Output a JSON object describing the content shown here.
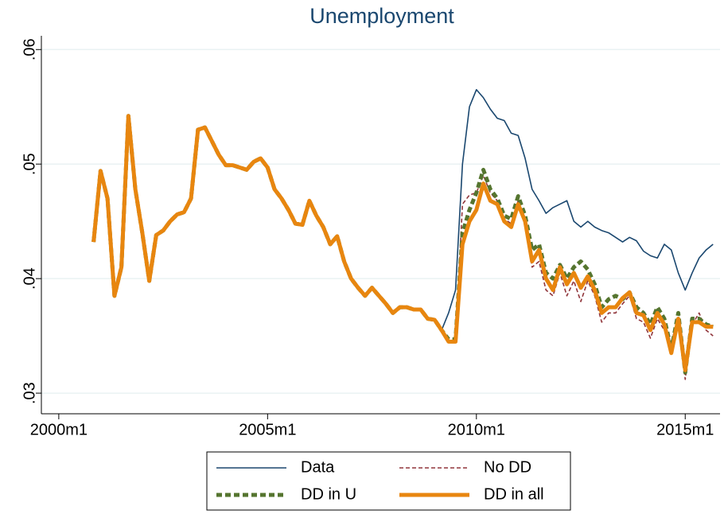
{
  "chart_data": {
    "type": "line",
    "title": "Unemployment",
    "x": [
      "2000m11",
      "2001m1",
      "2001m3",
      "2001m5",
      "2001m7",
      "2001m9",
      "2001m11",
      "2002m1",
      "2002m3",
      "2002m5",
      "2002m7",
      "2002m9",
      "2002m11",
      "2003m1",
      "2003m3",
      "2003m5",
      "2003m7",
      "2003m9",
      "2003m11",
      "2004m1",
      "2004m3",
      "2004m5",
      "2004m7",
      "2004m9",
      "2004m11",
      "2005m1",
      "2005m3",
      "2005m5",
      "2005m7",
      "2005m9",
      "2005m11",
      "2006m1",
      "2006m3",
      "2006m5",
      "2006m7",
      "2006m9",
      "2006m11",
      "2007m1",
      "2007m3",
      "2007m5",
      "2007m7",
      "2007m9",
      "2007m11",
      "2008m1",
      "2008m3",
      "2008m5",
      "2008m7",
      "2008m9",
      "2008m11",
      "2009m1",
      "2009m3",
      "2009m5",
      "2009m7",
      "2009m9",
      "2009m11",
      "2010m1",
      "2010m3",
      "2010m5",
      "2010m7",
      "2010m9",
      "2010m11",
      "2011m1",
      "2011m3",
      "2011m5",
      "2011m7",
      "2011m9",
      "2011m11",
      "2012m1",
      "2012m3",
      "2012m5",
      "2012m7",
      "2012m9",
      "2012m11",
      "2013m1",
      "2013m3",
      "2013m5",
      "2013m7",
      "2013m9",
      "2013m11",
      "2014m1",
      "2014m3",
      "2014m5",
      "2014m7",
      "2014m9",
      "2014m11",
      "2015m1",
      "2015m3",
      "2015m5",
      "2015m7",
      "2015m9"
    ],
    "series": [
      {
        "name": "Data",
        "color": "#1a476f",
        "line_style": "solid",
        "line_width": 1.6,
        "values": [
          0.0432,
          0.0494,
          0.047,
          0.0385,
          0.041,
          0.0542,
          0.0478,
          0.044,
          0.0398,
          0.0438,
          0.0442,
          0.045,
          0.0456,
          0.0458,
          0.047,
          0.053,
          0.0532,
          0.052,
          0.0508,
          0.0499,
          0.0499,
          0.0497,
          0.0495,
          0.0502,
          0.0505,
          0.0497,
          0.0478,
          0.047,
          0.046,
          0.0448,
          0.0447,
          0.0468,
          0.0455,
          0.0445,
          0.043,
          0.0437,
          0.0415,
          0.04,
          0.0392,
          0.0385,
          0.0392,
          0.0385,
          0.0378,
          0.037,
          0.0375,
          0.0375,
          0.0373,
          0.0373,
          0.0365,
          0.0364,
          0.0355,
          0.037,
          0.039,
          0.05,
          0.055,
          0.0565,
          0.0558,
          0.0548,
          0.054,
          0.0538,
          0.0527,
          0.0525,
          0.0505,
          0.0478,
          0.0468,
          0.0457,
          0.0462,
          0.0465,
          0.0468,
          0.045,
          0.0445,
          0.045,
          0.0445,
          0.0442,
          0.044,
          0.0436,
          0.0432,
          0.0436,
          0.0433,
          0.0424,
          0.042,
          0.0418,
          0.043,
          0.0425,
          0.0405,
          0.039,
          0.0405,
          0.0418,
          0.0425,
          0.043
        ]
      },
      {
        "name": "No DD",
        "color": "#90353b",
        "line_style": "dashed",
        "line_width": 1.6,
        "values": [
          0.0432,
          0.0494,
          0.047,
          0.0385,
          0.041,
          0.0542,
          0.0478,
          0.044,
          0.0398,
          0.0438,
          0.0442,
          0.045,
          0.0456,
          0.0458,
          0.047,
          0.053,
          0.0532,
          0.052,
          0.0508,
          0.0499,
          0.0499,
          0.0497,
          0.0495,
          0.0502,
          0.0505,
          0.0497,
          0.0478,
          0.047,
          0.046,
          0.0448,
          0.0447,
          0.0468,
          0.0455,
          0.0445,
          0.043,
          0.0437,
          0.0415,
          0.04,
          0.0392,
          0.0385,
          0.0392,
          0.0385,
          0.0378,
          0.037,
          0.0375,
          0.0375,
          0.0373,
          0.0373,
          0.0365,
          0.0364,
          0.0355,
          0.0345,
          0.0345,
          0.0465,
          0.0473,
          0.0475,
          0.049,
          0.0475,
          0.0468,
          0.0452,
          0.0448,
          0.0468,
          0.045,
          0.041,
          0.0415,
          0.039,
          0.0385,
          0.0405,
          0.0385,
          0.0398,
          0.038,
          0.0398,
          0.0385,
          0.0362,
          0.037,
          0.037,
          0.0378,
          0.0385,
          0.0365,
          0.0362,
          0.0348,
          0.0365,
          0.0355,
          0.0345,
          0.0365,
          0.0312,
          0.036,
          0.037,
          0.0355,
          0.035
        ]
      },
      {
        "name": "DD in U",
        "color": "#55752f",
        "line_style": "dashed",
        "line_width": 5,
        "values": [
          0.0432,
          0.0494,
          0.047,
          0.0385,
          0.041,
          0.0542,
          0.0478,
          0.044,
          0.0398,
          0.0438,
          0.0442,
          0.045,
          0.0456,
          0.0458,
          0.047,
          0.053,
          0.0532,
          0.052,
          0.0508,
          0.0499,
          0.0499,
          0.0497,
          0.0495,
          0.0502,
          0.0505,
          0.0497,
          0.0478,
          0.047,
          0.046,
          0.0448,
          0.0447,
          0.0468,
          0.0455,
          0.0445,
          0.043,
          0.0437,
          0.0415,
          0.04,
          0.0392,
          0.0385,
          0.0392,
          0.0385,
          0.0378,
          0.037,
          0.0375,
          0.0375,
          0.0373,
          0.0373,
          0.0365,
          0.0364,
          0.0355,
          0.0347,
          0.0347,
          0.044,
          0.046,
          0.0475,
          0.0495,
          0.0478,
          0.047,
          0.0455,
          0.0452,
          0.0472,
          0.0455,
          0.0425,
          0.043,
          0.0405,
          0.04,
          0.0412,
          0.04,
          0.041,
          0.0415,
          0.0408,
          0.0395,
          0.0375,
          0.0382,
          0.0385,
          0.0382,
          0.0388,
          0.0375,
          0.037,
          0.036,
          0.0375,
          0.0365,
          0.0338,
          0.037,
          0.0318,
          0.0365,
          0.0365,
          0.036,
          0.0358
        ]
      },
      {
        "name": "DD in all",
        "color": "#e8860f",
        "line_style": "solid",
        "line_width": 5,
        "values": [
          0.0432,
          0.0494,
          0.047,
          0.0385,
          0.041,
          0.0542,
          0.0478,
          0.044,
          0.0398,
          0.0438,
          0.0442,
          0.045,
          0.0456,
          0.0458,
          0.047,
          0.053,
          0.0532,
          0.052,
          0.0508,
          0.0499,
          0.0499,
          0.0497,
          0.0495,
          0.0502,
          0.0505,
          0.0497,
          0.0478,
          0.047,
          0.046,
          0.0448,
          0.0447,
          0.0468,
          0.0455,
          0.0445,
          0.043,
          0.0437,
          0.0415,
          0.04,
          0.0392,
          0.0385,
          0.0392,
          0.0385,
          0.0378,
          0.037,
          0.0375,
          0.0375,
          0.0373,
          0.0373,
          0.0365,
          0.0364,
          0.0355,
          0.0345,
          0.0345,
          0.043,
          0.045,
          0.046,
          0.0483,
          0.0468,
          0.0465,
          0.045,
          0.0445,
          0.0465,
          0.045,
          0.0415,
          0.0425,
          0.04,
          0.039,
          0.041,
          0.0395,
          0.0405,
          0.0392,
          0.0402,
          0.039,
          0.037,
          0.0375,
          0.0375,
          0.0383,
          0.0388,
          0.037,
          0.0368,
          0.0355,
          0.037,
          0.036,
          0.0335,
          0.0365,
          0.032,
          0.0362,
          0.0362,
          0.0358,
          0.0358
        ]
      }
    ],
    "xlim": [
      "1999m8",
      "2015m11"
    ],
    "xticks": [
      "2000m1",
      "2005m1",
      "2010m1",
      "2015m1"
    ],
    "ylim": [
      0.0282,
      0.0612
    ],
    "yticks": [
      {
        "value": 0.03,
        "label": ".03"
      },
      {
        "value": 0.04,
        "label": ".04"
      },
      {
        "value": 0.05,
        "label": ".05"
      },
      {
        "value": 0.06,
        "label": ".06"
      }
    ],
    "grid": true,
    "legend": "bottom"
  }
}
